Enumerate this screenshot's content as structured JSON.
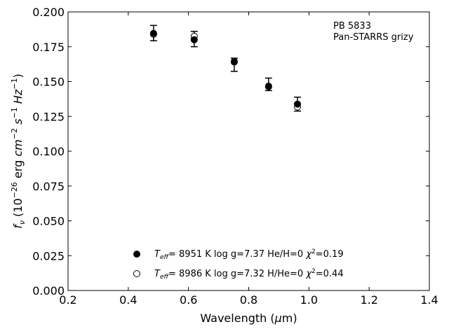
{
  "chart_data": {
    "type": "scatter",
    "annotation_lines": [
      "PB 5833",
      "Pan-STARRS grizy"
    ],
    "xlim": [
      0.2,
      1.4
    ],
    "ylim": [
      0.0,
      0.2
    ],
    "x_ticks": [
      "0.2",
      "0.4",
      "0.6",
      "0.8",
      "1.0",
      "1.2",
      "1.4"
    ],
    "y_ticks": [
      "0.000",
      "0.025",
      "0.050",
      "0.075",
      "0.100",
      "0.125",
      "0.150",
      "0.175",
      "0.200"
    ],
    "observed": {
      "x": [
        0.484,
        0.619,
        0.752,
        0.866,
        0.962
      ],
      "y": [
        0.1848,
        0.1805,
        0.1638,
        0.1475,
        0.1338
      ],
      "yerr_low": [
        0.0055,
        0.0055,
        0.0065,
        0.004,
        0.005
      ],
      "yerr_high": [
        0.0055,
        0.0055,
        0.003,
        0.005,
        0.005
      ]
    },
    "series": [
      {
        "marker": "filled",
        "values": [
          0.1846,
          0.18,
          0.164,
          0.1467,
          0.1338
        ],
        "legend": {
          "teff_value": "8951",
          "rest": "K  log g=7.37  He/H=0",
          "chi2": "=0.19"
        }
      },
      {
        "marker": "open",
        "values": [
          0.184,
          0.1825,
          0.1645,
          0.1463,
          0.1318
        ],
        "legend": {
          "teff_value": "8986",
          "rest": "K  log g=7.32  H/He=0",
          "chi2": "=0.44"
        }
      }
    ],
    "legend_placement": "lower-center",
    "grid": false
  }
}
